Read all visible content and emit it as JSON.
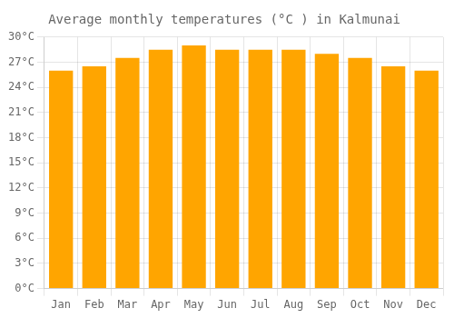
{
  "chart_data": {
    "type": "bar",
    "title": "Average monthly temperatures (°C ) in Kalmunai",
    "categories": [
      "Jan",
      "Feb",
      "Mar",
      "Apr",
      "May",
      "Jun",
      "Jul",
      "Aug",
      "Sep",
      "Oct",
      "Nov",
      "Dec"
    ],
    "values": [
      26.0,
      26.5,
      27.5,
      28.5,
      29.0,
      28.5,
      28.5,
      28.5,
      28.0,
      27.5,
      26.5,
      26.0
    ],
    "color": "#FFA500",
    "ylim": [
      0,
      30
    ],
    "yticks": [
      {
        "value": 0,
        "label": "0°C"
      },
      {
        "value": 3,
        "label": "3°C"
      },
      {
        "value": 6,
        "label": "6°C"
      },
      {
        "value": 9,
        "label": "9°C"
      },
      {
        "value": 12,
        "label": "12°C"
      },
      {
        "value": 15,
        "label": "15°C"
      },
      {
        "value": 18,
        "label": "18°C"
      },
      {
        "value": 21,
        "label": "21°C"
      },
      {
        "value": 24,
        "label": "24°C"
      },
      {
        "value": 27,
        "label": "27°C"
      },
      {
        "value": 30,
        "label": "30°C"
      }
    ],
    "grid": true
  }
}
